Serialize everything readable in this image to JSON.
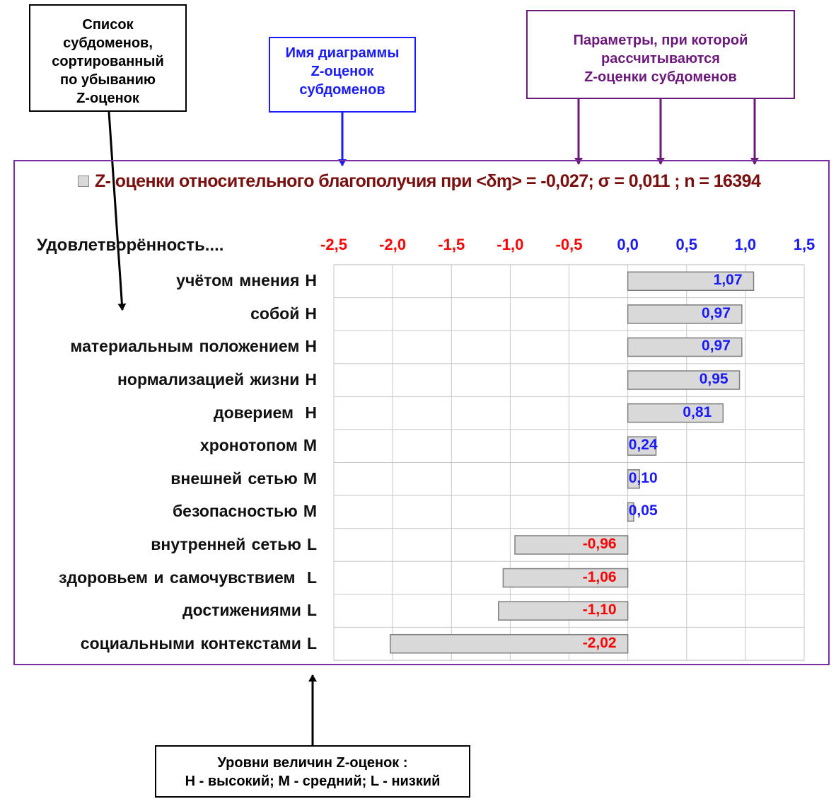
{
  "callouts": {
    "list": [
      "Список",
      "субдоменов,",
      "сортированный",
      "по убыванию",
      "Z-оценок"
    ],
    "name": [
      "Имя диаграммы",
      "Z-оценок",
      "субдоменов"
    ],
    "params": [
      "Параметры, при которой",
      "рассчитываются",
      "Z-оценки субдоменов"
    ],
    "levels": [
      "Уровни величин Z-оценок :",
      "H - высокий; M - средний; L - низкий"
    ]
  },
  "colors": {
    "negative": "#ff0000",
    "positive": "#1a1aff",
    "bar_fill": "#d9d9d9",
    "title": "#7a0f0f",
    "params_accent": "#6b1a7a",
    "name_accent": "#1a1aff",
    "frame": "#7a2fa0"
  },
  "chart_data": {
    "type": "bar",
    "orientation": "horizontal",
    "title": "Z- оценки относительного благополучия при <δɱ> = -0,027; σ = 0,011 ; n = 16394",
    "ylabel": "Удовлетворённость....",
    "xlim": [
      -2.5,
      1.5
    ],
    "xticks": [
      -2.5,
      -2.0,
      -1.5,
      -1.0,
      -0.5,
      0.0,
      0.5,
      1.0,
      1.5
    ],
    "xtick_labels": [
      "-2,5",
      "-2,0",
      "-1,5",
      "-1,0",
      "-0,5",
      "0,0",
      "0,5",
      "1,0",
      "1,5"
    ],
    "grid": true,
    "legend_marker": "top-left of title",
    "categories": [
      {
        "name": "учётом  мнения",
        "level": "H"
      },
      {
        "name": "собой",
        "level": "H"
      },
      {
        "name": "материальным положением",
        "level": "H"
      },
      {
        "name": "нормализацией жизни",
        "level": "H"
      },
      {
        "name": "доверием ",
        "level": "H"
      },
      {
        "name": "хронотопом",
        "level": "M"
      },
      {
        "name": "внешней сетью",
        "level": "M"
      },
      {
        "name": "безопасностью",
        "level": "M"
      },
      {
        "name": "внутренней  сетью",
        "level": "L"
      },
      {
        "name": "здоровьем и самочувствием ",
        "level": "L"
      },
      {
        "name": "достижениями",
        "level": "L"
      },
      {
        "name": "социальными контекстами",
        "level": "L"
      }
    ],
    "values": [
      1.07,
      0.97,
      0.97,
      0.95,
      0.81,
      0.24,
      0.1,
      0.05,
      -0.96,
      -1.06,
      -1.1,
      -2.02
    ],
    "value_labels": [
      "1,07",
      "0,97",
      "0,97",
      "0,95",
      "0,81",
      "0,24",
      "0,10",
      "0,05",
      "-0,96",
      "-1,06",
      "-1,10",
      "-2,02"
    ]
  }
}
